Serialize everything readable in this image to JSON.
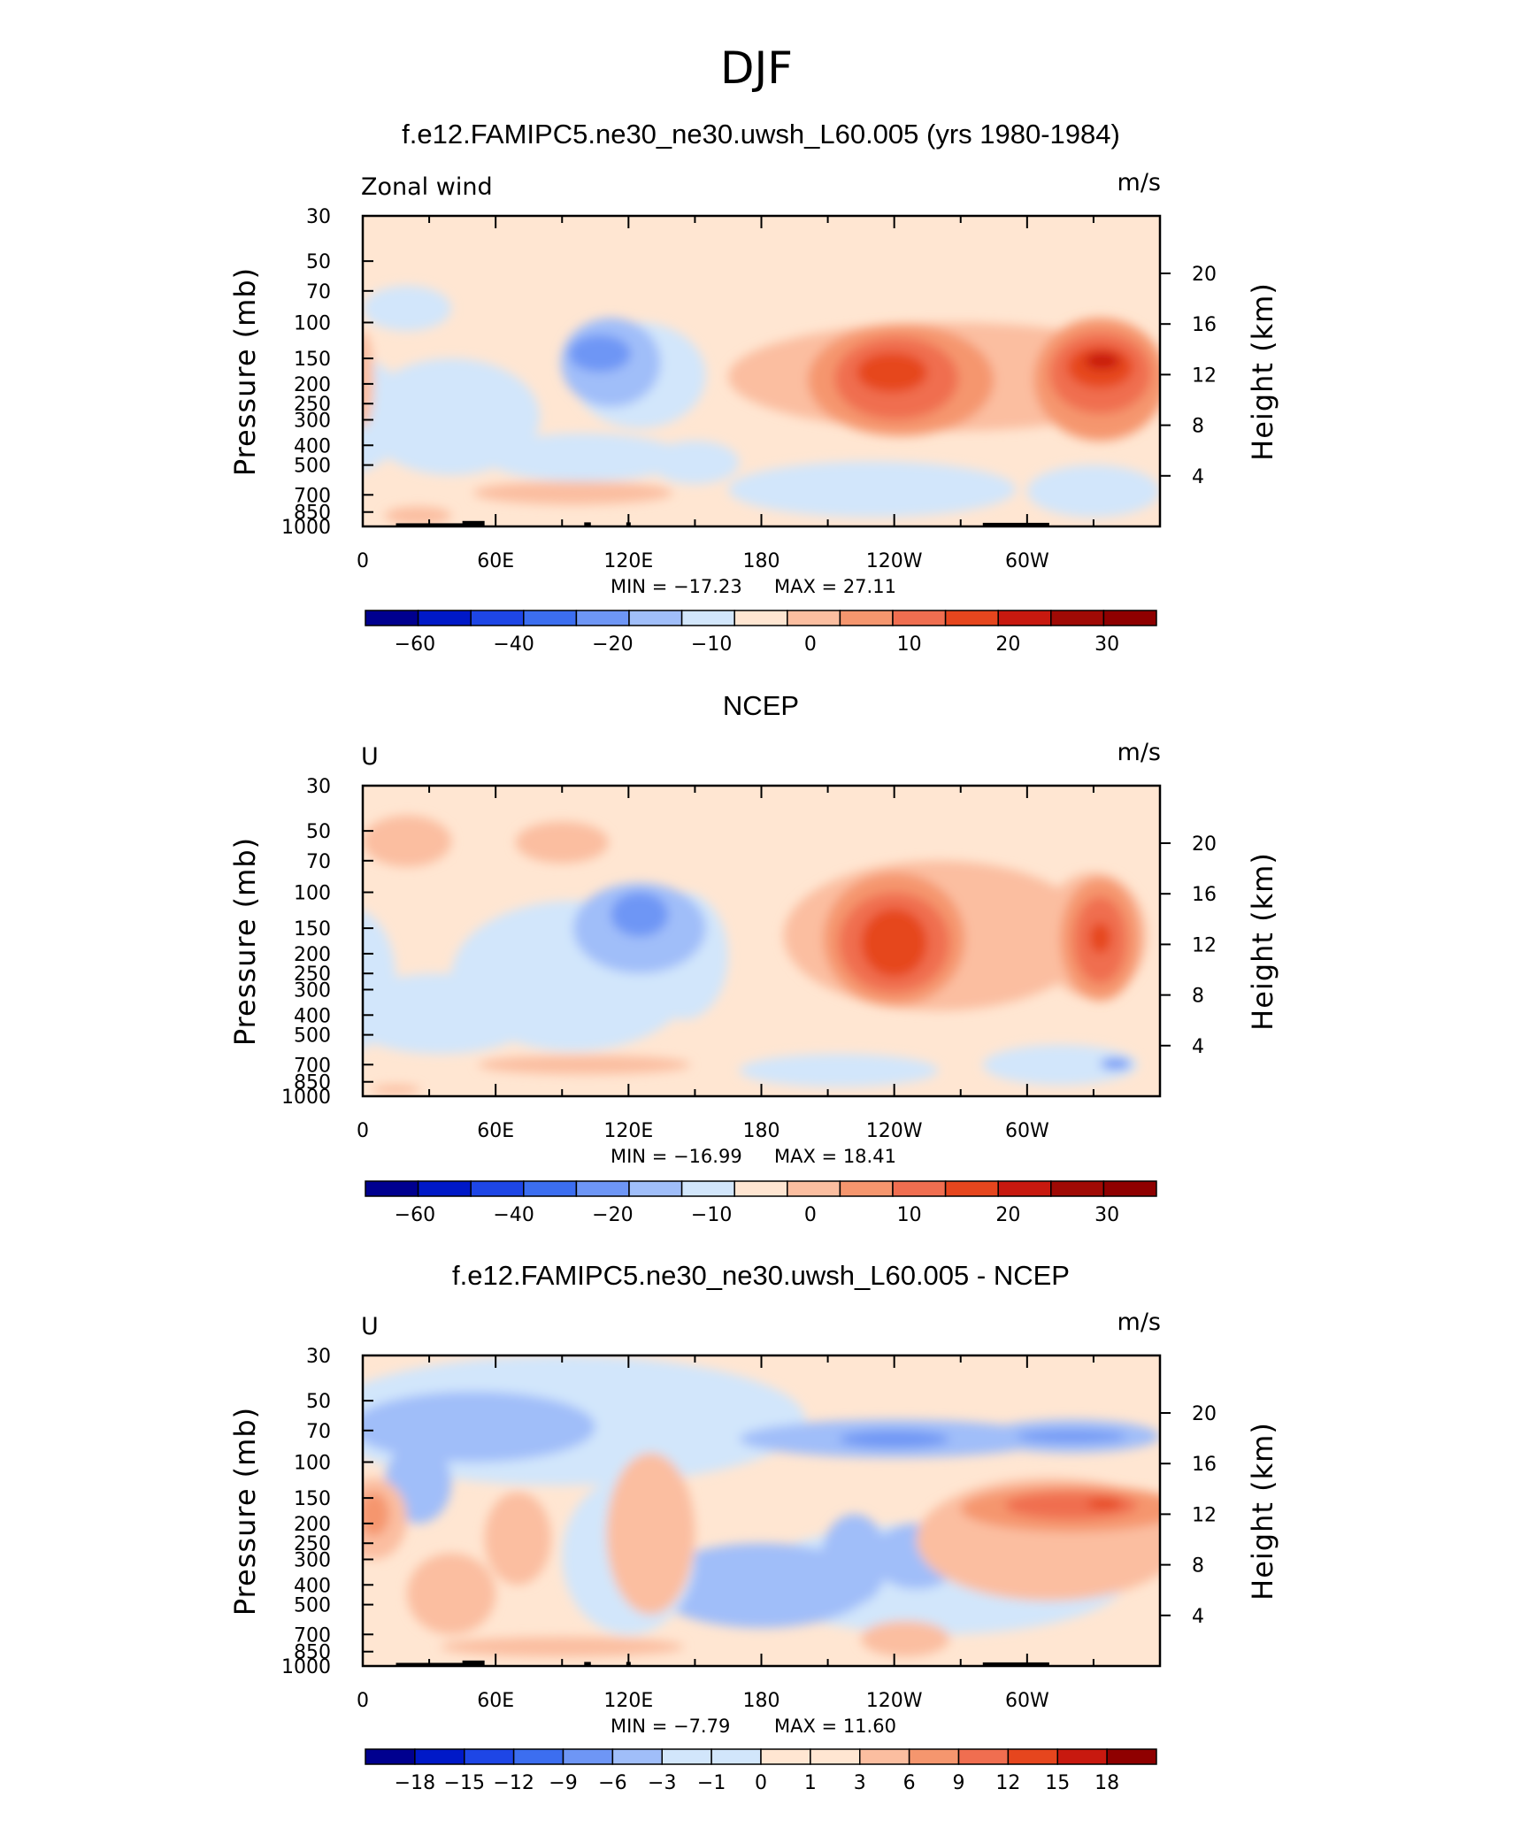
{
  "figure_title": "DJF",
  "colors": {
    "levels_blue_to_red": [
      "#00008f",
      "#0019c8",
      "#1e46e6",
      "#3c6ef0",
      "#6e96f5",
      "#a0bef9",
      "#d2e6fb",
      "#ffe6d2",
      "#fbbea0",
      "#f5966e",
      "#f06e50",
      "#e6461e",
      "#c8190f",
      "#8f0000"
    ]
  },
  "chart_data": [
    {
      "type": "contour",
      "title": "f.e12.FAMIPC5.ne30_ne30.uwsh_L60.005 (yrs 1980-1984)",
      "variable": "Zonal wind",
      "units": "m/s",
      "ylabel": "Pressure (mb)",
      "y2label": "Height (km)",
      "x_ticks": [
        "0",
        "60E",
        "120E",
        "180",
        "120W",
        "60W"
      ],
      "y_ticks": [
        "30",
        "50",
        "70",
        "100",
        "150",
        "200",
        "250",
        "300",
        "400",
        "500",
        "700",
        "850",
        "1000"
      ],
      "y2_ticks": [
        "20",
        "16",
        "12",
        "8",
        "4"
      ],
      "min_label": "MIN = −17.23",
      "max_label": "MAX =   27.11",
      "min": -17.23,
      "max": 27.11,
      "colorbar_labels": [
        "−60",
        "−40",
        "−20",
        "−10",
        "0",
        "10",
        "20",
        "30"
      ],
      "features": [
        {
          "lon": 110,
          "p": 140,
          "value": -15
        },
        {
          "lon": 240,
          "p": 170,
          "value": 22
        },
        {
          "lon": 335,
          "p": 150,
          "value": 27
        }
      ]
    },
    {
      "type": "contour",
      "title": "NCEP",
      "variable": "U",
      "units": "m/s",
      "ylabel": "Pressure (mb)",
      "y2label": "Height (km)",
      "x_ticks": [
        "0",
        "60E",
        "120E",
        "180",
        "120W",
        "60W"
      ],
      "y_ticks": [
        "30",
        "50",
        "70",
        "100",
        "150",
        "200",
        "250",
        "300",
        "400",
        "500",
        "700",
        "850",
        "1000"
      ],
      "y2_ticks": [
        "20",
        "16",
        "12",
        "8",
        "4"
      ],
      "min_label": "MIN = −16.99",
      "max_label": "MAX =   18.41",
      "min": -16.99,
      "max": 18.41,
      "colorbar_labels": [
        "−60",
        "−40",
        "−20",
        "−10",
        "0",
        "10",
        "20",
        "30"
      ],
      "features": [
        {
          "lon": 120,
          "p": 130,
          "value": -15
        },
        {
          "lon": 240,
          "p": 180,
          "value": 18
        },
        {
          "lon": 330,
          "p": 170,
          "value": 16
        }
      ]
    },
    {
      "type": "contour",
      "title": "f.e12.FAMIPC5.ne30_ne30.uwsh_L60.005 - NCEP",
      "variable": "U",
      "units": "m/s",
      "ylabel": "Pressure (mb)",
      "y2label": "Height (km)",
      "x_ticks": [
        "0",
        "60E",
        "120E",
        "180",
        "120W",
        "60W"
      ],
      "y_ticks": [
        "30",
        "50",
        "70",
        "100",
        "150",
        "200",
        "250",
        "300",
        "400",
        "500",
        "700",
        "850",
        "1000"
      ],
      "y2_ticks": [
        "20",
        "16",
        "12",
        "8",
        "4"
      ],
      "min_label": "MIN =   −7.79",
      "max_label": "MAX =   11.60",
      "min": -7.79,
      "max": 11.6,
      "colorbar_labels": [
        "−18",
        "−15",
        "−12",
        "−9",
        "−6",
        "−3",
        "−1",
        "0",
        "1",
        "3",
        "6",
        "9",
        "12",
        "15",
        "18"
      ],
      "features": [
        {
          "lon": 235,
          "p": 70,
          "value": -7.8
        },
        {
          "lon": 320,
          "p": 70,
          "value": -7
        },
        {
          "lon": 320,
          "p": 150,
          "value": 11
        },
        {
          "lon": 5,
          "p": 150,
          "value": 8
        },
        {
          "lon": 235,
          "p": 300,
          "value": -5
        }
      ]
    }
  ]
}
